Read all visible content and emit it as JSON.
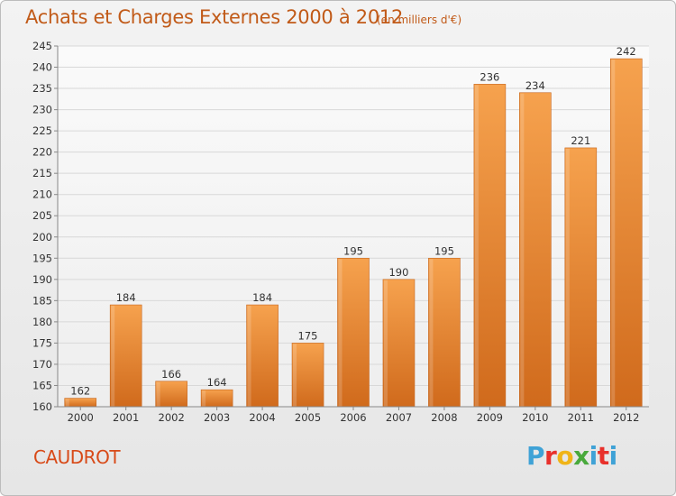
{
  "header": {
    "title": "Achats et Charges Externes 2000 à 2012",
    "subtitle": "(en milliers d'€)"
  },
  "footer": {
    "commune": "CAUDROT",
    "logo_text": "Proxiti",
    "logo_colors": [
      "#3fa2d6",
      "#e8302b",
      "#f0b418",
      "#49a93c",
      "#3fa2d6",
      "#e8302b",
      "#3fa2d6"
    ]
  },
  "chart_data": {
    "type": "bar",
    "title": "Achats et Charges Externes 2000 à 2012",
    "subtitle": "(en milliers d'€)",
    "xlabel": "",
    "ylabel": "",
    "categories": [
      "2000",
      "2001",
      "2002",
      "2003",
      "2004",
      "2005",
      "2006",
      "2007",
      "2008",
      "2009",
      "2010",
      "2011",
      "2012"
    ],
    "values": [
      162,
      184,
      166,
      164,
      184,
      175,
      195,
      190,
      195,
      236,
      234,
      221,
      242
    ],
    "data_labels": [
      "162",
      "184",
      "166",
      "164",
      "184",
      "175",
      "195",
      "190",
      "195",
      "236",
      "234",
      "221",
      "242"
    ],
    "ylim": [
      160,
      245
    ],
    "yticks": [
      "160",
      "165",
      "170",
      "175",
      "180",
      "185",
      "190",
      "195",
      "200",
      "205",
      "210",
      "215",
      "220",
      "225",
      "230",
      "235",
      "240",
      "245"
    ],
    "grid": true,
    "bar_color_light": "#f6a24e",
    "bar_color_dark": "#d06a1c",
    "accent_color": "#c15a18"
  }
}
